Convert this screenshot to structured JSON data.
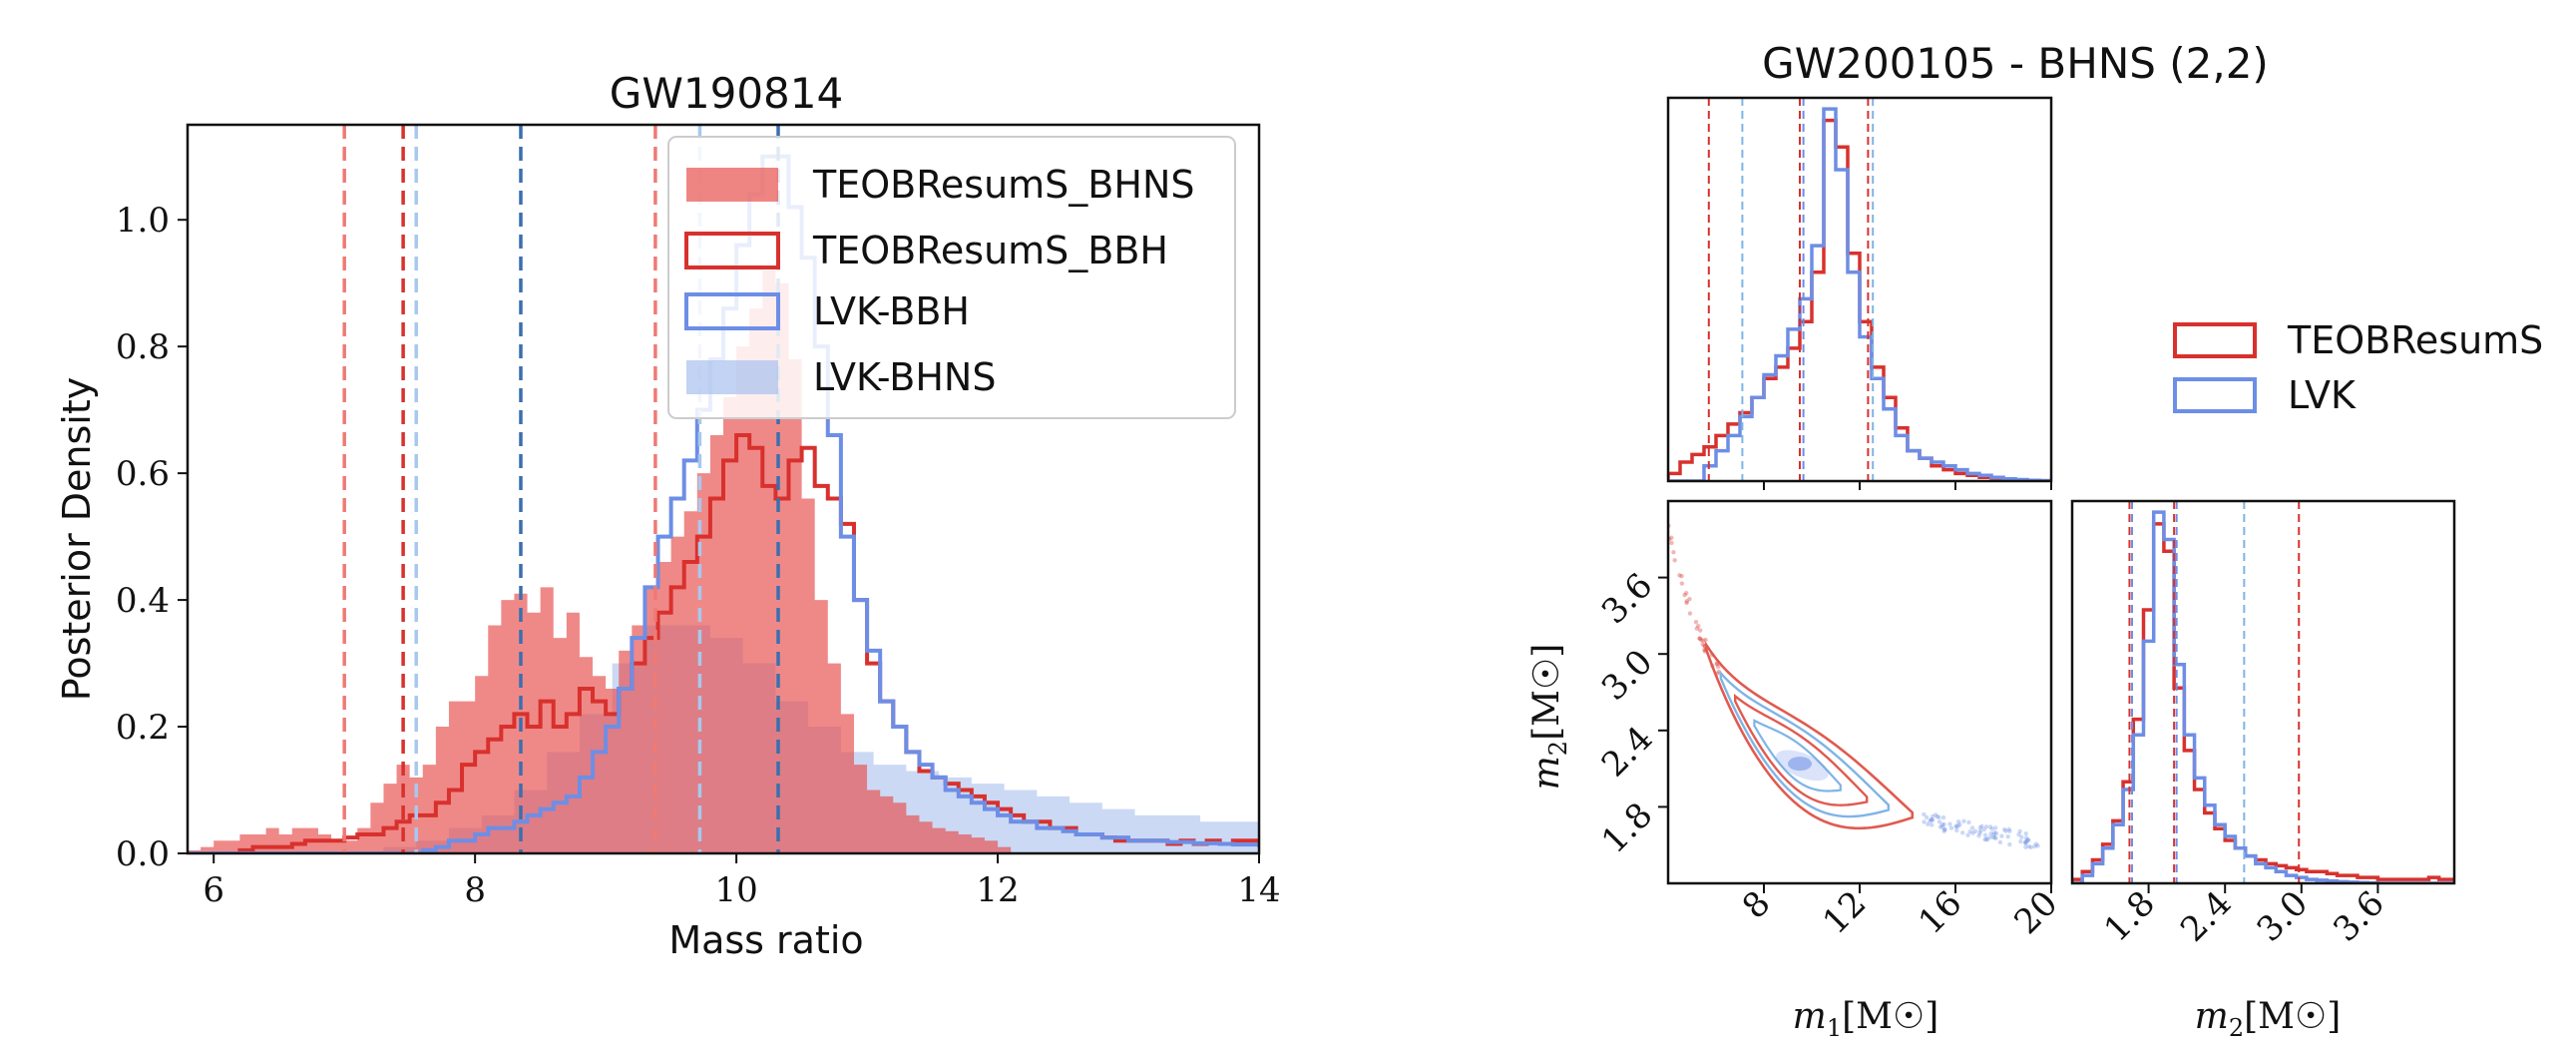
{
  "chart_data": [
    {
      "type": "histogram",
      "title": "GW190814",
      "xlabel": "Mass ratio",
      "ylabel": "Posterior Density",
      "xlim": [
        5.8,
        14
      ],
      "ylim": [
        0,
        1.15
      ],
      "xticks": [
        "6",
        "8",
        "10",
        "12",
        "14"
      ],
      "yticks": [
        "0.0",
        "0.2",
        "0.4",
        "0.6",
        "0.8",
        "1.0"
      ],
      "bin_width": 0.15,
      "bin_start": 5.8,
      "legend_position": "upper-right",
      "series": [
        {
          "name": "TEOBResumS_BHNS",
          "style": "filled",
          "color": "#e8514f",
          "bin_start": 5.8,
          "bin_width": 0.1,
          "values": [
            0.005,
            0.01,
            0.02,
            0.02,
            0.03,
            0.03,
            0.04,
            0.03,
            0.04,
            0.04,
            0.03,
            0.02,
            0.02,
            0.04,
            0.08,
            0.11,
            0.14,
            0.12,
            0.14,
            0.2,
            0.24,
            0.24,
            0.28,
            0.36,
            0.4,
            0.41,
            0.38,
            0.42,
            0.34,
            0.38,
            0.31,
            0.28,
            0.26,
            0.32,
            0.36,
            0.42,
            0.46,
            0.5,
            0.54,
            0.6,
            0.66,
            0.72,
            0.8,
            0.86,
            0.92,
            0.9,
            0.78,
            0.56,
            0.4,
            0.3,
            0.22,
            0.14,
            0.1,
            0.09,
            0.08,
            0.06,
            0.05,
            0.04,
            0.035,
            0.03,
            0.025,
            0.02,
            0.01
          ]
        },
        {
          "name": "TEOBResumS_BBH",
          "style": "step",
          "color": "#d8312d",
          "bin_start": 5.8,
          "bin_width": 0.1,
          "values": [
            0.0,
            0.0,
            0.0,
            0.0,
            0.005,
            0.01,
            0.01,
            0.01,
            0.015,
            0.02,
            0.02,
            0.02,
            0.025,
            0.03,
            0.03,
            0.04,
            0.05,
            0.06,
            0.06,
            0.08,
            0.1,
            0.14,
            0.16,
            0.18,
            0.2,
            0.22,
            0.2,
            0.24,
            0.2,
            0.22,
            0.26,
            0.24,
            0.22,
            0.26,
            0.3,
            0.34,
            0.38,
            0.42,
            0.46,
            0.5,
            0.56,
            0.62,
            0.66,
            0.64,
            0.58,
            0.56,
            0.62,
            0.64,
            0.58,
            0.56,
            0.52,
            0.4,
            0.3,
            0.24,
            0.2,
            0.16,
            0.13,
            0.12,
            0.11,
            0.1,
            0.09,
            0.08,
            0.07,
            0.06,
            0.05,
            0.05,
            0.04,
            0.04,
            0.03,
            0.03,
            0.025,
            0.02,
            0.02,
            0.02,
            0.02,
            0.015,
            0.02,
            0.015,
            0.02,
            0.015,
            0.02,
            0.02,
            0.015,
            0.02,
            0.015,
            0.02,
            0.01,
            0.015,
            0.02,
            0.015,
            0.01,
            0.015,
            0.01,
            0.01,
            0.015,
            0.01,
            0.01,
            0.01,
            0.01,
            0.005
          ]
        },
        {
          "name": "LVK-BBH",
          "style": "step",
          "color": "#6d8ee6",
          "bin_start": 5.8,
          "bin_width": 0.1,
          "values": [
            0.0,
            0.0,
            0.0,
            0.0,
            0.0,
            0.0,
            0.0,
            0.0,
            0.0,
            0.0,
            0.0,
            0.0,
            0.0,
            0.0,
            0.0,
            0.0,
            0.0,
            0.0,
            0.005,
            0.01,
            0.02,
            0.02,
            0.03,
            0.04,
            0.04,
            0.05,
            0.06,
            0.07,
            0.08,
            0.09,
            0.12,
            0.16,
            0.2,
            0.26,
            0.34,
            0.42,
            0.5,
            0.56,
            0.62,
            0.7,
            0.78,
            0.86,
            0.96,
            1.04,
            1.1,
            1.1,
            1.02,
            0.94,
            0.8,
            0.66,
            0.5,
            0.4,
            0.32,
            0.24,
            0.2,
            0.16,
            0.14,
            0.12,
            0.1,
            0.09,
            0.08,
            0.07,
            0.06,
            0.05,
            0.05,
            0.04,
            0.04,
            0.035,
            0.03,
            0.03,
            0.025,
            0.025,
            0.02,
            0.02,
            0.02,
            0.018,
            0.018,
            0.016,
            0.016,
            0.015,
            0.014,
            0.014,
            0.013,
            0.012,
            0.012,
            0.011,
            0.011,
            0.01,
            0.01,
            0.01,
            0.01,
            0.009,
            0.009,
            0.008,
            0.008,
            0.007,
            0.007,
            0.007,
            0.006,
            0.006
          ]
        },
        {
          "name": "LVK-BHNS",
          "style": "filled",
          "color": "#a8c0ee",
          "bin_start": 5.8,
          "bin_width": 0.25,
          "values": [
            0.0,
            0.0,
            0.0,
            0.0,
            0.0,
            0.0,
            0.01,
            0.02,
            0.04,
            0.06,
            0.1,
            0.16,
            0.22,
            0.3,
            0.36,
            0.36,
            0.34,
            0.3,
            0.24,
            0.2,
            0.16,
            0.14,
            0.13,
            0.12,
            0.11,
            0.1,
            0.09,
            0.08,
            0.07,
            0.06,
            0.06,
            0.05,
            0.05,
            0.04,
            0.04,
            0.03
          ]
        }
      ],
      "vlines": [
        {
          "x": 7.0,
          "color": "#ef7a74",
          "style": "dashed"
        },
        {
          "x": 7.45,
          "color": "#d8312d",
          "style": "dashed"
        },
        {
          "x": 7.55,
          "color": "#a8c8ee",
          "style": "dashed"
        },
        {
          "x": 8.35,
          "color": "#3a6fb0",
          "style": "dashed"
        },
        {
          "x": 9.38,
          "color": "#ef7a74",
          "style": "dashed"
        },
        {
          "x": 9.72,
          "color": "#a8c8ee",
          "style": "dashed"
        },
        {
          "x": 10.32,
          "color": "#3a6fb0",
          "style": "dashed"
        }
      ]
    },
    {
      "type": "corner",
      "title": "GW200105 - BHNS (2,2)",
      "legend": [
        {
          "name": "TEOBResumS",
          "color": "#d8312d"
        },
        {
          "name": "LVK",
          "color": "#6d8ee6"
        }
      ],
      "legend_position": "right",
      "m1_panel": {
        "xlim": [
          4,
          20
        ],
        "bin_start": 4,
        "bin_width": 0.5,
        "series": [
          {
            "name": "TEOBResumS",
            "color": "#d8312d",
            "values": [
              0.02,
              0.05,
              0.07,
              0.09,
              0.12,
              0.15,
              0.18,
              0.22,
              0.27,
              0.3,
              0.35,
              0.42,
              0.55,
              0.95,
              0.88,
              0.6,
              0.42,
              0.3,
              0.22,
              0.14,
              0.08,
              0.06,
              0.04,
              0.03,
              0.02,
              0.015,
              0.01,
              0.008,
              0.005,
              0.003,
              0.002,
              0.001
            ]
          },
          {
            "name": "LVK",
            "color": "#6d8ee6",
            "values": [
              0.0,
              0.0,
              0.0,
              0.04,
              0.08,
              0.12,
              0.17,
              0.22,
              0.28,
              0.33,
              0.4,
              0.48,
              0.62,
              0.98,
              0.82,
              0.55,
              0.38,
              0.27,
              0.19,
              0.12,
              0.08,
              0.06,
              0.05,
              0.04,
              0.03,
              0.02,
              0.015,
              0.01,
              0.006,
              0.004,
              0.002,
              0.001
            ]
          }
        ],
        "vlines": [
          {
            "x": 5.7,
            "color": "#d8312d"
          },
          {
            "x": 7.1,
            "color": "#7fb4e6"
          },
          {
            "x": 9.5,
            "color": "#d8312d"
          },
          {
            "x": 9.65,
            "color": "#6d8ee6"
          },
          {
            "x": 12.35,
            "color": "#d8312d"
          },
          {
            "x": 12.55,
            "color": "#7fb4e6"
          }
        ]
      },
      "joint_panel": {
        "xlim": [
          4,
          20
        ],
        "ylim": [
          1.2,
          4.2
        ],
        "xticks": [
          "8",
          "12",
          "16",
          "20"
        ],
        "yticks": [
          "1.8",
          "2.4",
          "3.0",
          "3.6"
        ],
        "ylabel_base": "m",
        "ylabel_sub": "2",
        "ylabel_unit": "[M",
        "ylabel_unit_close": "]"
      },
      "m2_panel": {
        "xlim": [
          1.2,
          4.2
        ],
        "xticks": [
          "1.8",
          "2.4",
          "3.0",
          "3.6"
        ],
        "bin_start": 1.2,
        "bin_width": 0.08,
        "series": [
          {
            "name": "TEOBResumS",
            "color": "#d8312d",
            "values": [
              0.01,
              0.03,
              0.06,
              0.1,
              0.16,
              0.26,
              0.42,
              0.7,
              0.92,
              0.85,
              0.5,
              0.34,
              0.24,
              0.18,
              0.14,
              0.11,
              0.09,
              0.07,
              0.06,
              0.05,
              0.045,
              0.04,
              0.035,
              0.03,
              0.03,
              0.025,
              0.02,
              0.02,
              0.015,
              0.015,
              0.01,
              0.01,
              0.01,
              0.01,
              0.01,
              0.015,
              0.01,
              0.01
            ]
          },
          {
            "name": "LVK",
            "color": "#6d8ee6",
            "values": [
              0.0,
              0.02,
              0.05,
              0.09,
              0.15,
              0.24,
              0.38,
              0.62,
              0.95,
              0.88,
              0.56,
              0.38,
              0.27,
              0.2,
              0.15,
              0.12,
              0.09,
              0.07,
              0.05,
              0.04,
              0.03,
              0.02,
              0.015,
              0.01,
              0.008,
              0.006,
              0.004,
              0.003,
              0.002,
              0.001,
              0.0,
              0.0,
              0.0,
              0.0,
              0.0,
              0.0,
              0.0,
              0.0
            ]
          }
        ],
        "vlines": [
          {
            "x": 1.65,
            "color": "#d8312d"
          },
          {
            "x": 1.67,
            "color": "#6d8ee6"
          },
          {
            "x": 2.0,
            "color": "#d8312d"
          },
          {
            "x": 2.02,
            "color": "#6d8ee6"
          },
          {
            "x": 2.55,
            "color": "#7fb4e6"
          },
          {
            "x": 2.98,
            "color": "#d8312d"
          }
        ]
      },
      "xlabel_m1": {
        "base": "m",
        "sub": "1",
        "unit": "[M",
        "close": "]"
      },
      "xlabel_m2": {
        "base": "m",
        "sub": "2",
        "unit": "[M",
        "close": "]"
      }
    }
  ]
}
